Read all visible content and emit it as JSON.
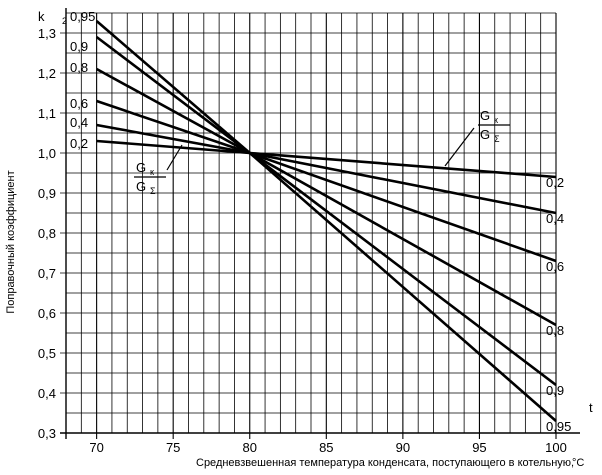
{
  "chart_data": {
    "type": "line",
    "xlabel": "Средневзвешенная температура конденсата, поступающего в котельную,",
    "x_unit": "°C",
    "x_symbol": "t",
    "ylabel": "Поправочный коэффициент",
    "y_symbol": "k",
    "y_subscript": "2",
    "xlim": [
      68,
      100
    ],
    "ylim": [
      0.3,
      1.35
    ],
    "xticks": [
      70,
      75,
      80,
      85,
      90,
      95,
      100
    ],
    "yticks": [
      0.3,
      0.4,
      0.5,
      0.6,
      0.7,
      0.8,
      0.9,
      1.0,
      1.1,
      1.2,
      1.3
    ],
    "xtick_labels": [
      "70",
      "75",
      "80",
      "85",
      "90",
      "95",
      "100"
    ],
    "ytick_labels": [
      "0,3",
      "0,4",
      "0,5",
      "0,6",
      "0,7",
      "0,8",
      "0,9",
      "1,0",
      "1,1",
      "1,2",
      "1,3"
    ],
    "grid": true,
    "parameter": {
      "numerator": "G",
      "numerator_sub": "к",
      "denominator": "G",
      "denominator_sub": "Σ"
    },
    "series": [
      {
        "name": "0,95",
        "x": [
          70,
          80,
          100
        ],
        "y": [
          1.33,
          1.0,
          0.33
        ]
      },
      {
        "name": "0,9",
        "x": [
          70,
          80,
          100
        ],
        "y": [
          1.29,
          1.0,
          0.42
        ]
      },
      {
        "name": "0,8",
        "x": [
          70,
          80,
          100
        ],
        "y": [
          1.21,
          1.0,
          0.57
        ]
      },
      {
        "name": "0,6",
        "x": [
          70,
          80,
          100
        ],
        "y": [
          1.13,
          1.0,
          0.73
        ]
      },
      {
        "name": "0,4",
        "x": [
          70,
          80,
          100
        ],
        "y": [
          1.07,
          1.0,
          0.85
        ]
      },
      {
        "name": "0,2",
        "x": [
          70,
          80,
          100
        ],
        "y": [
          1.03,
          1.0,
          0.94
        ]
      }
    ]
  }
}
